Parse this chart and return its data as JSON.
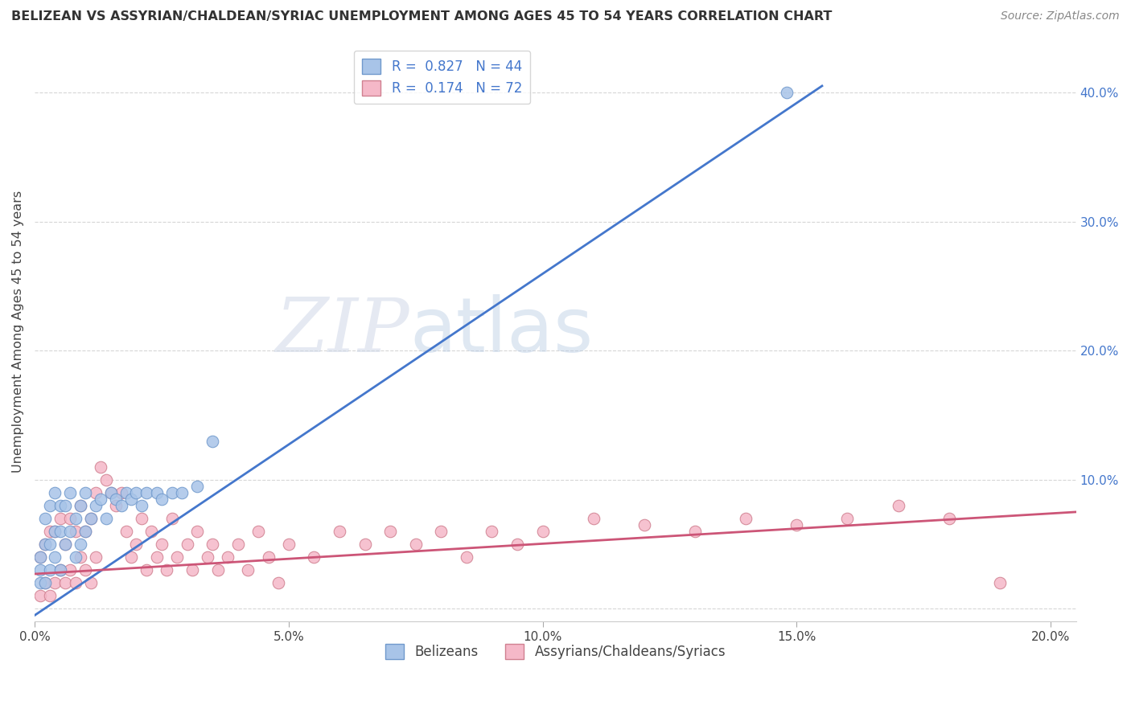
{
  "title": "BELIZEAN VS ASSYRIAN/CHALDEAN/SYRIAC UNEMPLOYMENT AMONG AGES 45 TO 54 YEARS CORRELATION CHART",
  "source": "Source: ZipAtlas.com",
  "ylabel": "Unemployment Among Ages 45 to 54 years",
  "xlim": [
    0,
    0.205
  ],
  "ylim": [
    -0.01,
    0.44
  ],
  "xticks": [
    0.0,
    0.05,
    0.1,
    0.15,
    0.2
  ],
  "xtick_labels": [
    "0.0%",
    "5.0%",
    "10.0%",
    "15.0%",
    "20.0%"
  ],
  "yticks": [
    0.0,
    0.1,
    0.2,
    0.3,
    0.4
  ],
  "ytick_right_labels": [
    "",
    "10.0%",
    "20.0%",
    "30.0%",
    "40.0%"
  ],
  "belizean_color": "#a8c4e8",
  "belizean_edge_color": "#7099cc",
  "assyrian_color": "#f5b8c8",
  "assyrian_edge_color": "#d08090",
  "blue_line_color": "#4477cc",
  "pink_line_color": "#cc5577",
  "R_belizean": 0.827,
  "N_belizean": 44,
  "R_assyrian": 0.174,
  "N_assyrian": 72,
  "watermark_zip": "ZIP",
  "watermark_atlas": "atlas",
  "legend_belizean": "Belizeans",
  "legend_assyrian": "Assyrians/Chaldeans/Syriacs",
  "blue_line_x0": 0.0,
  "blue_line_y0": -0.005,
  "blue_line_x1": 0.155,
  "blue_line_y1": 0.405,
  "pink_line_x0": 0.0,
  "pink_line_y0": 0.027,
  "pink_line_x1": 0.205,
  "pink_line_y1": 0.075,
  "belizean_scatter_x": [
    0.001,
    0.001,
    0.001,
    0.002,
    0.002,
    0.002,
    0.003,
    0.003,
    0.003,
    0.004,
    0.004,
    0.004,
    0.005,
    0.005,
    0.005,
    0.006,
    0.006,
    0.007,
    0.007,
    0.008,
    0.008,
    0.009,
    0.009,
    0.01,
    0.01,
    0.011,
    0.012,
    0.013,
    0.014,
    0.015,
    0.016,
    0.017,
    0.018,
    0.019,
    0.02,
    0.021,
    0.022,
    0.024,
    0.025,
    0.027,
    0.029,
    0.032,
    0.035,
    0.148
  ],
  "belizean_scatter_y": [
    0.02,
    0.03,
    0.04,
    0.02,
    0.05,
    0.07,
    0.03,
    0.05,
    0.08,
    0.04,
    0.06,
    0.09,
    0.03,
    0.06,
    0.08,
    0.05,
    0.08,
    0.06,
    0.09,
    0.04,
    0.07,
    0.05,
    0.08,
    0.06,
    0.09,
    0.07,
    0.08,
    0.085,
    0.07,
    0.09,
    0.085,
    0.08,
    0.09,
    0.085,
    0.09,
    0.08,
    0.09,
    0.09,
    0.085,
    0.09,
    0.09,
    0.095,
    0.13,
    0.4
  ],
  "assyrian_scatter_x": [
    0.001,
    0.001,
    0.002,
    0.002,
    0.003,
    0.003,
    0.004,
    0.004,
    0.005,
    0.005,
    0.006,
    0.006,
    0.007,
    0.007,
    0.008,
    0.008,
    0.009,
    0.009,
    0.01,
    0.01,
    0.011,
    0.011,
    0.012,
    0.012,
    0.013,
    0.014,
    0.015,
    0.016,
    0.017,
    0.018,
    0.019,
    0.02,
    0.021,
    0.022,
    0.023,
    0.024,
    0.025,
    0.026,
    0.027,
    0.028,
    0.03,
    0.031,
    0.032,
    0.034,
    0.035,
    0.036,
    0.038,
    0.04,
    0.042,
    0.044,
    0.046,
    0.048,
    0.05,
    0.055,
    0.06,
    0.065,
    0.07,
    0.075,
    0.08,
    0.085,
    0.09,
    0.095,
    0.1,
    0.11,
    0.12,
    0.13,
    0.14,
    0.15,
    0.16,
    0.17,
    0.18,
    0.19
  ],
  "assyrian_scatter_y": [
    0.01,
    0.04,
    0.02,
    0.05,
    0.01,
    0.06,
    0.02,
    0.06,
    0.03,
    0.07,
    0.02,
    0.05,
    0.03,
    0.07,
    0.02,
    0.06,
    0.04,
    0.08,
    0.03,
    0.06,
    0.02,
    0.07,
    0.04,
    0.09,
    0.11,
    0.1,
    0.09,
    0.08,
    0.09,
    0.06,
    0.04,
    0.05,
    0.07,
    0.03,
    0.06,
    0.04,
    0.05,
    0.03,
    0.07,
    0.04,
    0.05,
    0.03,
    0.06,
    0.04,
    0.05,
    0.03,
    0.04,
    0.05,
    0.03,
    0.06,
    0.04,
    0.02,
    0.05,
    0.04,
    0.06,
    0.05,
    0.06,
    0.05,
    0.06,
    0.04,
    0.06,
    0.05,
    0.06,
    0.07,
    0.065,
    0.06,
    0.07,
    0.065,
    0.07,
    0.08,
    0.07,
    0.02
  ]
}
